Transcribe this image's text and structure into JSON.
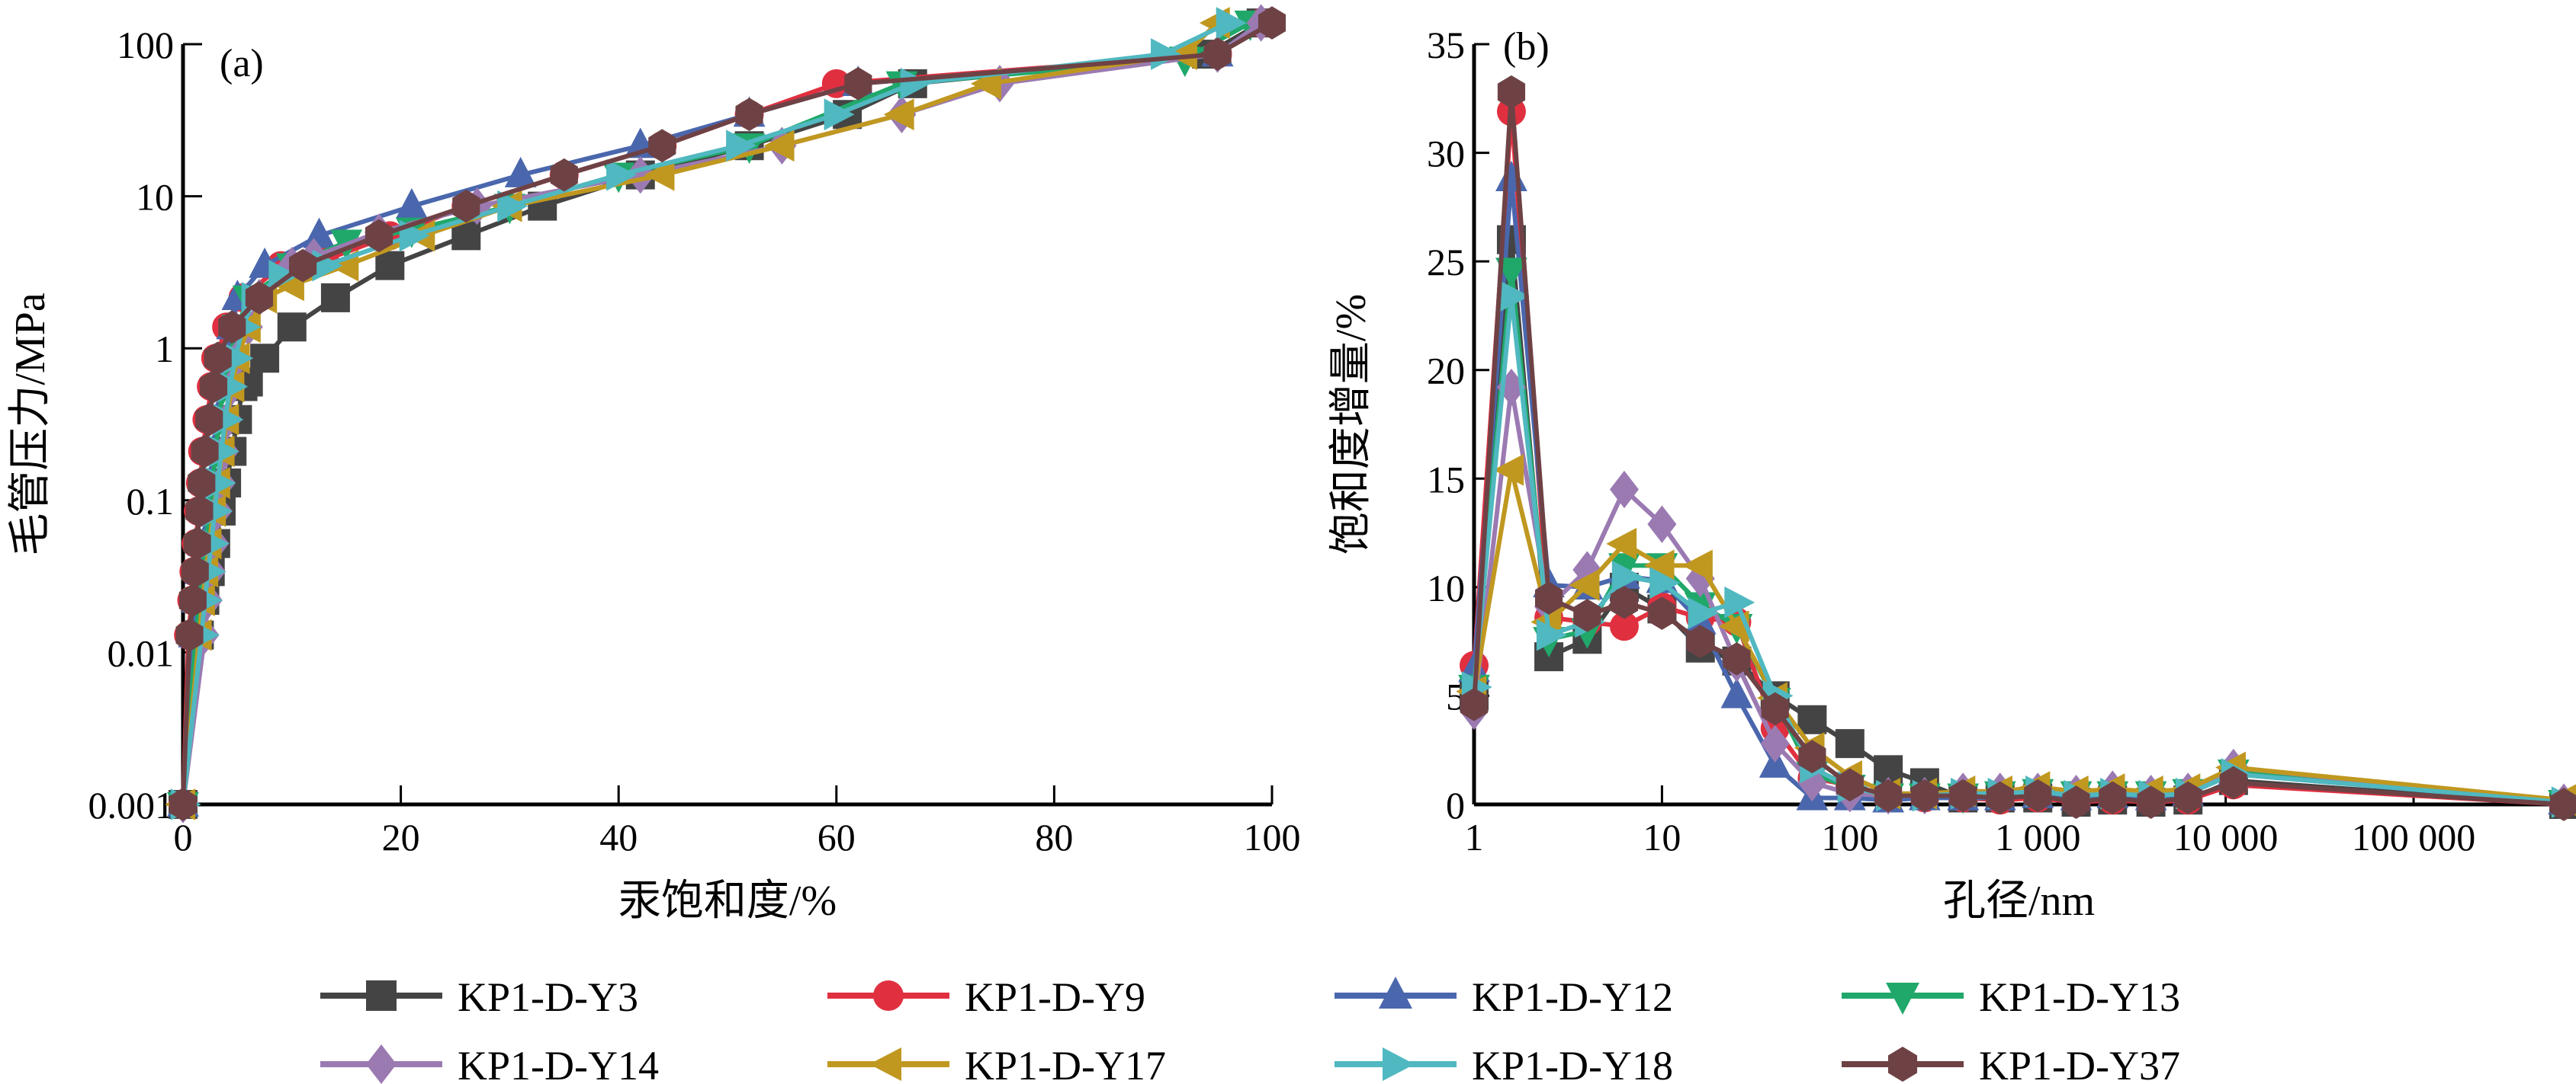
{
  "chart_data": [
    {
      "panel": "(a)",
      "type": "line",
      "title": "",
      "xlabel": "汞饱和度/%",
      "ylabel": "毛管压力/MPa",
      "xscale": "linear",
      "yscale": "log",
      "xlim": [
        0,
        100
      ],
      "ylim": [
        0.001,
        100
      ],
      "xticks": [
        "0",
        "20",
        "40",
        "60",
        "80",
        "100"
      ],
      "yticks": [
        "0.001",
        "0.01",
        "0.1",
        "1",
        "10",
        "100"
      ],
      "grid": false,
      "series": [
        {
          "name": "KP1-D-Y3",
          "color": "#444444",
          "marker": "square",
          "x": [
            0,
            1.5,
            2.0,
            2.5,
            3.0,
            3.5,
            4.0,
            4.5,
            5.0,
            5.5,
            6.0,
            7.5,
            10,
            14,
            19,
            26,
            33,
            42,
            52,
            61,
            67,
            94,
            99
          ],
          "y": [
            0.001,
            0.013,
            0.022,
            0.034,
            0.052,
            0.085,
            0.13,
            0.21,
            0.34,
            0.56,
            0.6,
            0.86,
            1.38,
            2.15,
            3.5,
            5.5,
            8.6,
            13.8,
            21.5,
            34.5,
            55,
            86,
            138
          ]
        },
        {
          "name": "KP1-D-Y9",
          "color": "#e03040",
          "marker": "circle",
          "x": [
            0,
            0.5,
            0.8,
            1.0,
            1.2,
            1.4,
            1.6,
            1.8,
            2.2,
            2.6,
            3.0,
            4.0,
            5.5,
            9,
            13,
            19,
            26,
            35,
            44,
            52,
            60,
            95,
            99
          ],
          "y": [
            0.001,
            0.013,
            0.022,
            0.034,
            0.052,
            0.085,
            0.13,
            0.21,
            0.34,
            0.56,
            0.86,
            1.38,
            2.15,
            3.5,
            3.8,
            5.5,
            8.6,
            13.8,
            21.5,
            34.5,
            55,
            86,
            138
          ]
        },
        {
          "name": "KP1-D-Y12",
          "color": "#4a67ad",
          "marker": "triangle-up",
          "x": [
            0,
            1.0,
            1.3,
            1.6,
            1.9,
            2.2,
            2.5,
            2.8,
            3.1,
            3.5,
            4.0,
            4.5,
            5.0,
            7.5,
            12.5,
            21,
            31,
            42,
            52,
            62,
            95,
            99
          ],
          "y": [
            0.001,
            0.013,
            0.022,
            0.034,
            0.052,
            0.085,
            0.13,
            0.21,
            0.34,
            0.56,
            0.86,
            1.38,
            2.15,
            3.5,
            5.5,
            8.6,
            13.8,
            21.5,
            34.5,
            55,
            86,
            138
          ]
        },
        {
          "name": "KP1-D-Y13",
          "color": "#20a86a",
          "marker": "triangle-down",
          "x": [
            0,
            1.2,
            1.5,
            1.8,
            2.1,
            2.4,
            2.7,
            3.0,
            3.3,
            3.7,
            4.2,
            5.0,
            6.0,
            10,
            15,
            21,
            30,
            40,
            52,
            66,
            92,
            98
          ],
          "y": [
            0.001,
            0.013,
            0.022,
            0.034,
            0.052,
            0.085,
            0.13,
            0.21,
            0.34,
            0.56,
            0.86,
            1.38,
            2.15,
            3.5,
            5.0,
            6.0,
            8.6,
            13.8,
            21.5,
            55,
            80,
            138
          ]
        },
        {
          "name": "KP1-D-Y14",
          "color": "#9b7ab2",
          "marker": "diamond",
          "x": [
            0,
            2.0,
            2.3,
            2.6,
            2.9,
            3.2,
            3.5,
            3.8,
            4.1,
            4.5,
            5.0,
            6.0,
            7.0,
            10,
            12,
            18,
            27,
            42,
            55,
            66,
            75,
            95,
            99
          ],
          "y": [
            0.001,
            0.013,
            0.022,
            0.034,
            0.052,
            0.085,
            0.13,
            0.21,
            0.34,
            0.56,
            0.86,
            1.38,
            2.15,
            3.5,
            4.0,
            5.8,
            8.6,
            13.8,
            21.5,
            34.5,
            55,
            86,
            138
          ]
        },
        {
          "name": "KP1-D-Y17",
          "color": "#c09820",
          "marker": "triangle-left",
          "x": [
            0,
            1.5,
            1.8,
            2.1,
            2.4,
            2.8,
            3.2,
            3.6,
            4.0,
            4.5,
            5.0,
            6.0,
            7.5,
            10,
            15,
            22,
            30,
            44,
            55,
            66,
            74,
            92,
            95
          ],
          "y": [
            0.001,
            0.013,
            0.022,
            0.034,
            0.052,
            0.085,
            0.13,
            0.21,
            0.34,
            0.56,
            0.86,
            1.38,
            2.15,
            2.6,
            3.5,
            5.5,
            8.6,
            13.8,
            21.5,
            34.5,
            55,
            86,
            138
          ]
        },
        {
          "name": "KP1-D-Y18",
          "color": "#50b8c0",
          "marker": "triangle-right",
          "x": [
            0,
            1.7,
            2.0,
            2.3,
            2.6,
            2.9,
            3.2,
            3.5,
            3.9,
            4.3,
            4.8,
            5.5,
            6.5,
            9,
            13,
            21,
            30,
            40,
            51,
            60,
            67,
            90,
            96
          ],
          "y": [
            0.001,
            0.013,
            0.022,
            0.034,
            0.052,
            0.085,
            0.13,
            0.21,
            0.34,
            0.56,
            0.86,
            1.38,
            2.15,
            3.0,
            3.5,
            5.5,
            8.6,
            13.8,
            21.5,
            34.5,
            55,
            86,
            138
          ]
        },
        {
          "name": "KP1-D-Y37",
          "color": "#6e4245",
          "marker": "hexagon",
          "x": [
            0,
            0.6,
            0.9,
            1.1,
            1.3,
            1.5,
            1.7,
            2.0,
            2.4,
            2.8,
            3.2,
            4.5,
            7.0,
            11,
            18,
            26,
            35,
            44,
            52,
            62,
            95,
            100
          ],
          "y": [
            0.001,
            0.013,
            0.022,
            0.034,
            0.052,
            0.085,
            0.13,
            0.21,
            0.34,
            0.56,
            0.86,
            1.38,
            2.15,
            3.5,
            5.5,
            8.6,
            13.8,
            21.5,
            34.5,
            55,
            86,
            138
          ]
        }
      ]
    },
    {
      "panel": "(b)",
      "type": "line",
      "title": "",
      "xlabel": "孔径/nm",
      "ylabel": "饱和度增量/%",
      "xscale": "log",
      "yscale": "linear",
      "xlim": [
        1,
        630000
      ],
      "ylim": [
        0,
        35
      ],
      "xticks": [
        "1",
        "10",
        "100",
        "1 000",
        "10 000",
        "100 000"
      ],
      "yticks": [
        "0",
        "5",
        "10",
        "15",
        "20",
        "25",
        "30",
        "35"
      ],
      "grid": false,
      "x": [
        1,
        1.58,
        2.5,
        4,
        6.3,
        10,
        16,
        25,
        40,
        63,
        100,
        160,
        250,
        400,
        630,
        1000,
        1600,
        2500,
        4000,
        6300,
        11000,
        630000
      ],
      "series": [
        {
          "name": "KP1-D-Y3",
          "color": "#444444",
          "marker": "square",
          "y": [
            5.0,
            26.0,
            6.8,
            7.6,
            10.0,
            9.0,
            7.2,
            6.6,
            5.0,
            3.9,
            2.8,
            1.6,
            1.0,
            0.3,
            0.3,
            0.3,
            0.1,
            0.2,
            0.1,
            0.2,
            1.1,
            0.0
          ]
        },
        {
          "name": "KP1-D-Y9",
          "color": "#e03040",
          "marker": "circle",
          "y": [
            6.4,
            31.9,
            8.6,
            8.4,
            8.2,
            9.1,
            8.6,
            8.4,
            3.5,
            1.2,
            0.9,
            0.3,
            0.3,
            0.3,
            0.2,
            0.3,
            0.1,
            0.2,
            0.1,
            0.2,
            0.9,
            0.0
          ]
        },
        {
          "name": "KP1-D-Y12",
          "color": "#4a67ad",
          "marker": "triangle-up",
          "y": [
            6.2,
            28.8,
            10.1,
            10.0,
            10.5,
            10.3,
            8.4,
            5.0,
            1.8,
            0.3,
            0.3,
            0.2,
            0.3,
            0.3,
            0.3,
            0.4,
            0.3,
            0.4,
            0.3,
            0.5,
            1.4,
            0.1
          ]
        },
        {
          "name": "KP1-D-Y13",
          "color": "#20a86a",
          "marker": "triangle-down",
          "y": [
            5.4,
            24.6,
            7.6,
            8.0,
            11.0,
            11.0,
            9.2,
            8.2,
            4.8,
            1.4,
            0.8,
            0.4,
            0.4,
            0.4,
            0.5,
            0.6,
            0.5,
            0.5,
            0.5,
            0.6,
            1.5,
            0.1
          ]
        },
        {
          "name": "KP1-D-Y14",
          "color": "#9b7ab2",
          "marker": "diamond",
          "y": [
            4.3,
            19.2,
            9.1,
            10.8,
            14.5,
            12.9,
            10.4,
            6.5,
            2.8,
            1.0,
            0.5,
            0.4,
            0.4,
            0.6,
            0.6,
            0.6,
            0.5,
            0.7,
            0.5,
            0.6,
            1.7,
            0.1
          ]
        },
        {
          "name": "KP1-D-Y17",
          "color": "#c09820",
          "marker": "triangle-left",
          "y": [
            5.2,
            15.4,
            8.4,
            10.1,
            12.0,
            11.0,
            11.0,
            8.2,
            4.9,
            2.6,
            1.3,
            0.5,
            0.5,
            0.6,
            0.6,
            0.8,
            0.6,
            0.7,
            0.6,
            0.7,
            1.7,
            0.2
          ]
        },
        {
          "name": "KP1-D-Y18",
          "color": "#50b8c0",
          "marker": "triangle-right",
          "y": [
            5.4,
            23.4,
            7.8,
            8.4,
            10.5,
            10.2,
            8.8,
            9.3,
            5.0,
            1.7,
            0.8,
            0.4,
            0.4,
            0.5,
            0.5,
            0.6,
            0.4,
            0.5,
            0.4,
            0.5,
            1.4,
            0.1
          ]
        },
        {
          "name": "KP1-D-Y37",
          "color": "#6e4245",
          "marker": "hexagon",
          "y": [
            4.6,
            32.8,
            9.5,
            8.7,
            9.3,
            8.8,
            7.5,
            6.7,
            4.4,
            2.2,
            0.9,
            0.4,
            0.4,
            0.4,
            0.3,
            0.4,
            0.1,
            0.3,
            0.1,
            0.3,
            1.0,
            0.0
          ]
        }
      ]
    }
  ],
  "legend": {
    "placement": "bottom",
    "items": [
      "KP1-D-Y3",
      "KP1-D-Y9",
      "KP1-D-Y12",
      "KP1-D-Y13",
      "KP1-D-Y14",
      "KP1-D-Y17",
      "KP1-D-Y18",
      "KP1-D-Y37"
    ]
  }
}
